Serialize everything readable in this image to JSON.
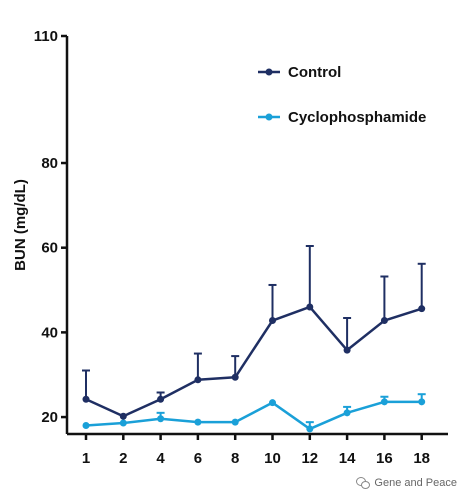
{
  "chart_data": {
    "type": "line",
    "title": "",
    "xlabel": "",
    "ylabel": "BUN (mg/dL)",
    "categories": [
      "1",
      "2",
      "4",
      "6",
      "8",
      "10",
      "12",
      "14",
      "16",
      "18"
    ],
    "yticks": [
      20,
      40,
      60,
      80,
      110
    ],
    "ylim": [
      16,
      110
    ],
    "grid": false,
    "legend": "top-right",
    "series": [
      {
        "name": "Control",
        "color": "#1f2f63",
        "values": [
          24.2,
          20.2,
          24.2,
          28.8,
          29.4,
          42.8,
          46.0,
          35.8,
          42.8,
          45.6
        ],
        "error_up": [
          6.8,
          0,
          1.6,
          6.2,
          5.0,
          8.4,
          14.4,
          7.6,
          10.4,
          10.6
        ]
      },
      {
        "name": "Cyclophosphamide",
        "color": "#1aa0d8",
        "values": [
          18.0,
          18.6,
          19.6,
          18.8,
          18.8,
          23.4,
          17.2,
          21.0,
          23.6,
          23.6
        ],
        "error_up": [
          0,
          0,
          1.4,
          0,
          0,
          0,
          1.6,
          1.4,
          1.2,
          1.8
        ]
      }
    ]
  },
  "watermark": {
    "text": "Gene and Peace",
    "icon": "chat-bubbles-icon"
  }
}
